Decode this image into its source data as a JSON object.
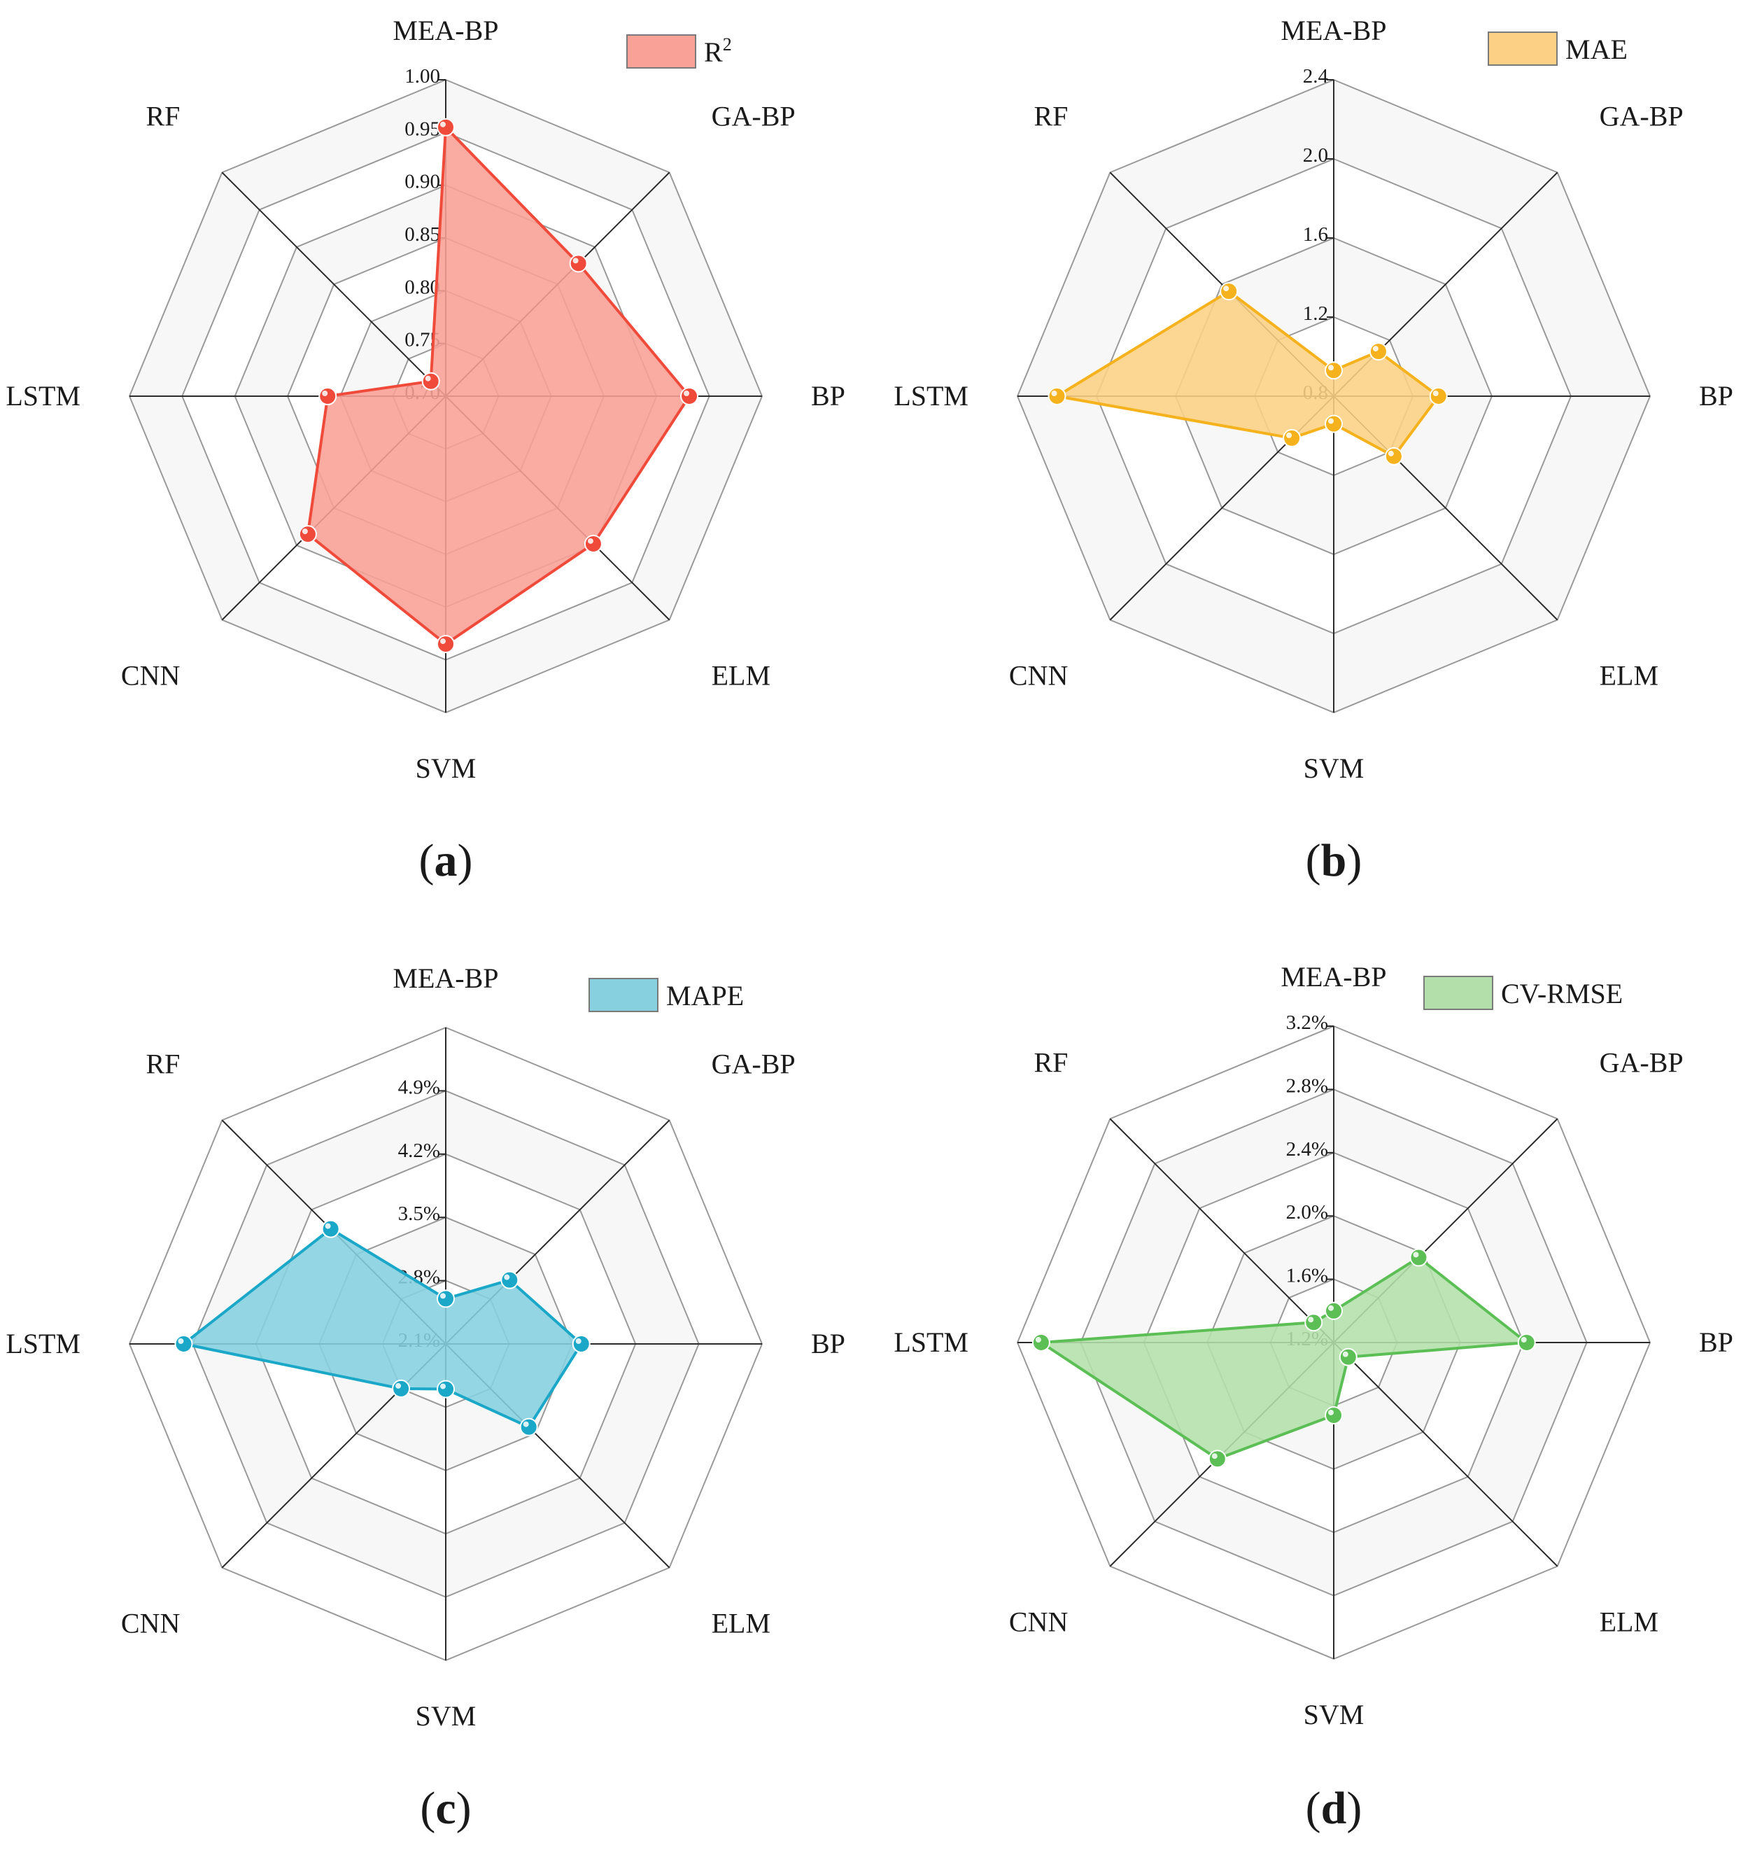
{
  "figure": {
    "panels": [
      {
        "label": "(",
        "letter": "a",
        "close": ")"
      },
      {
        "label": "(",
        "letter": "b",
        "close": ")"
      },
      {
        "label": "(",
        "letter": "c",
        "close": ")"
      },
      {
        "label": "(",
        "letter": "d",
        "close": ")"
      }
    ]
  },
  "chart_data": [
    {
      "type": "radar",
      "panel": "(a)",
      "axes": [
        "MEA-BP",
        "GA-BP",
        "BP",
        "ELM",
        "SVM",
        "CNN",
        "LSTM",
        "RF"
      ],
      "series": [
        {
          "name": "R2",
          "legend_base": "R",
          "legend_sup": "2",
          "values": [
            0.955,
            0.878,
            0.931,
            0.898,
            0.935,
            0.885,
            0.812,
            0.72
          ]
        }
      ],
      "range": [
        0.7,
        1.0
      ],
      "rings": 6,
      "ticks": [
        "0.70",
        "0.75",
        "0.80",
        "0.85",
        "0.90",
        "0.95",
        "1.00"
      ],
      "tick_values": [
        0.7,
        0.75,
        0.8,
        0.85,
        0.9,
        0.95,
        1.0
      ],
      "color": "#f04a3a",
      "fill": "#f9a196",
      "legend_position": "top-right"
    },
    {
      "type": "radar",
      "panel": "(b)",
      "axes": [
        "MEA-BP",
        "GA-BP",
        "BP",
        "ELM",
        "SVM",
        "CNN",
        "LSTM",
        "RF"
      ],
      "series": [
        {
          "name": "MAE",
          "legend_base": "MAE",
          "legend_sup": "",
          "values": [
            0.93,
            1.12,
            1.33,
            1.23,
            0.94,
            1.1,
            2.2,
            1.55
          ]
        }
      ],
      "range": [
        0.8,
        2.4
      ],
      "rings": 4,
      "ticks": [
        "0.8",
        "1.2",
        "1.6",
        "2.0",
        "2.4"
      ],
      "tick_values": [
        0.8,
        1.2,
        1.6,
        2.0,
        2.4
      ],
      "color": "#f5b21c",
      "fill": "#fcd185",
      "legend_position": "top-right"
    },
    {
      "type": "radar",
      "panel": "(c)",
      "axes": [
        "MEA-BP",
        "GA-BP",
        "BP",
        "ELM",
        "SVM",
        "CNN",
        "LSTM",
        "RF"
      ],
      "series": [
        {
          "name": "MAPE",
          "legend_base": "MAPE",
          "legend_sup": "",
          "values": [
            2.6,
            3.1,
            3.6,
            3.4,
            2.6,
            2.8,
            5.0,
            3.9
          ]
        }
      ],
      "range": [
        2.1,
        5.6
      ],
      "rings": 5,
      "ticks": [
        "2.1%",
        "2.8%",
        "3.5%",
        "4.2%",
        "4.9%"
      ],
      "tick_values": [
        2.1,
        2.8,
        3.5,
        4.2,
        4.9
      ],
      "color": "#1aa7c8",
      "fill": "#86d0e0",
      "legend_position": "top-right"
    },
    {
      "type": "radar",
      "panel": "(d)",
      "axes": [
        "MEA-BP",
        "GA-BP",
        "BP",
        "ELM",
        "SVM",
        "CNN",
        "LSTM",
        "RF"
      ],
      "series": [
        {
          "name": "CV-RMSE",
          "legend_base": "CV-RMSE",
          "legend_sup": "",
          "values": [
            1.4,
            1.96,
            2.42,
            1.33,
            1.66,
            2.24,
            3.05,
            1.38
          ]
        }
      ],
      "range": [
        1.2,
        3.2
      ],
      "rings": 5,
      "ticks": [
        "1.2%",
        "1.6%",
        "2.0%",
        "2.4%",
        "2.8%",
        "3.2%"
      ],
      "tick_values": [
        1.2,
        1.6,
        2.0,
        2.4,
        2.8,
        3.2
      ],
      "color": "#5bbf55",
      "fill": "#b3e0aa",
      "legend_position": "top-right"
    }
  ]
}
